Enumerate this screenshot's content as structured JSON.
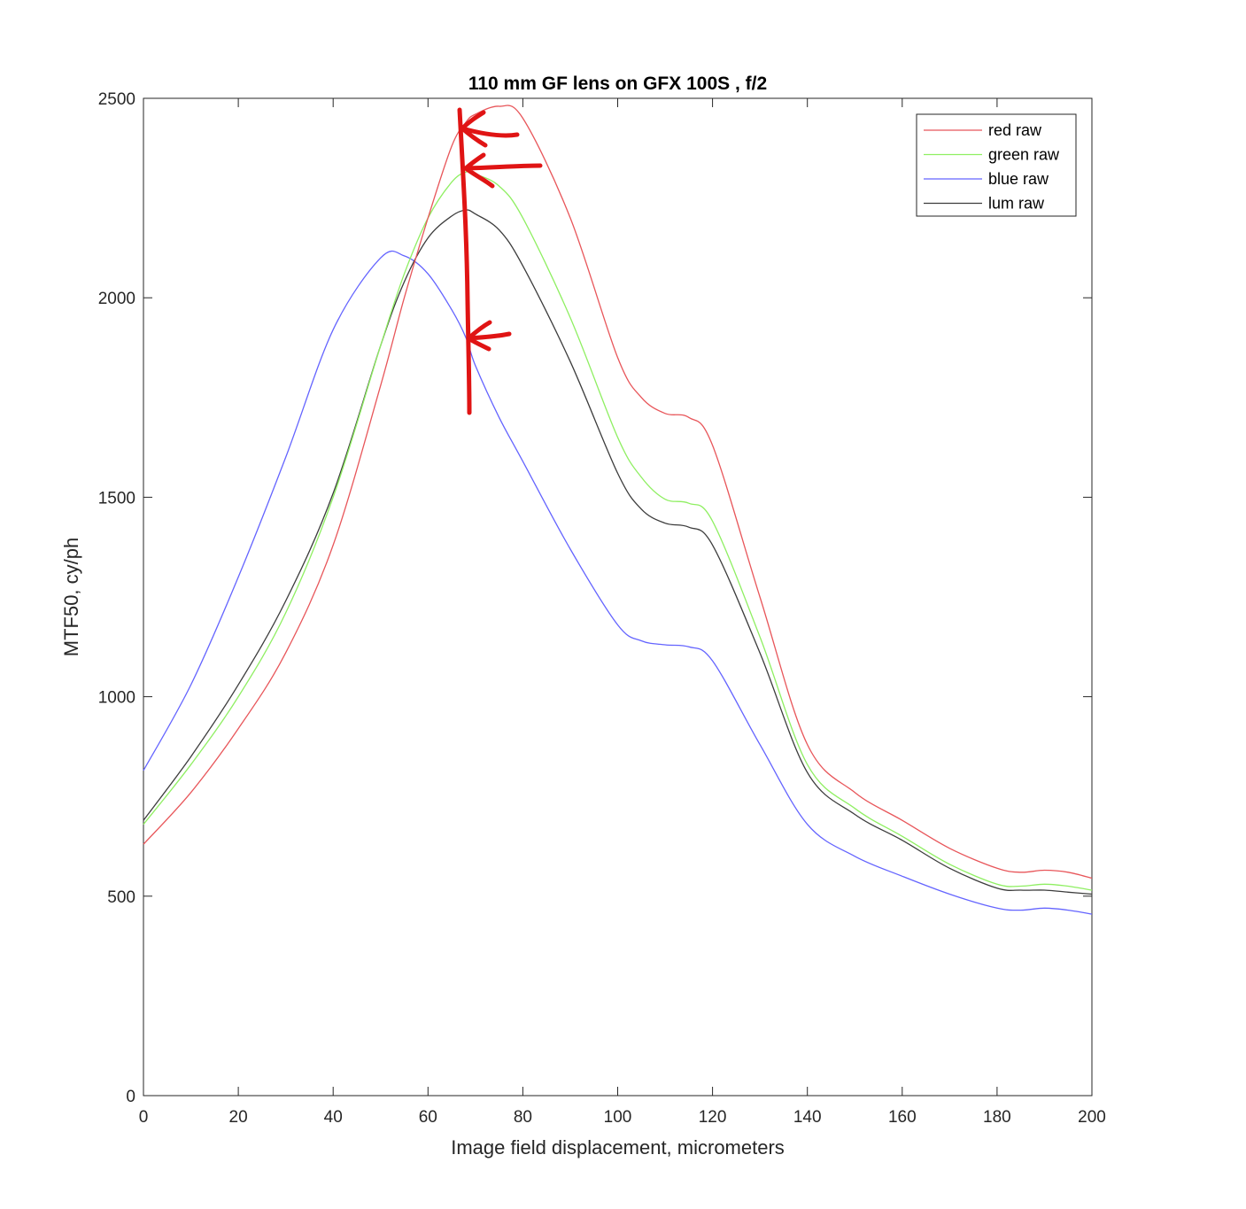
{
  "chart_data": {
    "type": "line",
    "title": "110 mm GF lens on GFX 100S , f/2",
    "xlabel": "Image field displacement, micrometers",
    "ylabel": "MTF50, cy/ph",
    "xlim": [
      0,
      200
    ],
    "ylim": [
      0,
      2500
    ],
    "xticks": [
      0,
      20,
      40,
      60,
      80,
      100,
      120,
      140,
      160,
      180,
      200
    ],
    "yticks": [
      0,
      500,
      1000,
      1500,
      2000,
      2500
    ],
    "xtick_labels": [
      "0",
      "20",
      "40",
      "60",
      "80",
      "100",
      "120",
      "140",
      "160",
      "180",
      "200"
    ],
    "ytick_labels": [
      "0",
      "500",
      "1000",
      "1500",
      "2000",
      "2500"
    ],
    "grid": false,
    "legend_position": "top-right",
    "x": [
      0,
      10,
      20,
      30,
      40,
      50,
      55,
      60,
      65,
      68,
      70,
      75,
      80,
      90,
      100,
      105,
      110,
      115,
      120,
      130,
      140,
      150,
      160,
      170,
      180,
      185,
      190,
      195,
      200
    ],
    "series": [
      {
        "name": "red raw",
        "color": "#e8565a",
        "values": [
          630,
          760,
          920,
          1110,
          1380,
          1780,
          2000,
          2200,
          2380,
          2440,
          2460,
          2480,
          2450,
          2200,
          1850,
          1750,
          1710,
          1700,
          1630,
          1250,
          880,
          760,
          690,
          620,
          570,
          560,
          565,
          560,
          545
        ]
      },
      {
        "name": "green raw",
        "color": "#8fef62",
        "values": [
          680,
          830,
          1000,
          1210,
          1500,
          1880,
          2060,
          2200,
          2290,
          2315,
          2310,
          2280,
          2200,
          1950,
          1650,
          1550,
          1495,
          1485,
          1440,
          1150,
          830,
          720,
          650,
          580,
          530,
          525,
          530,
          525,
          515
        ]
      },
      {
        "name": "blue raw",
        "color": "#6464ff",
        "values": [
          815,
          1030,
          1300,
          1600,
          1920,
          2100,
          2105,
          2060,
          1970,
          1900,
          1830,
          1700,
          1590,
          1370,
          1180,
          1140,
          1130,
          1125,
          1090,
          880,
          680,
          600,
          550,
          505,
          470,
          465,
          470,
          465,
          455
        ]
      },
      {
        "name": "lum raw",
        "color": "#3c3c3c",
        "values": [
          690,
          850,
          1030,
          1240,
          1510,
          1880,
          2040,
          2150,
          2205,
          2220,
          2210,
          2170,
          2080,
          1840,
          1560,
          1470,
          1435,
          1425,
          1380,
          1110,
          810,
          705,
          640,
          570,
          520,
          515,
          515,
          510,
          505
        ]
      }
    ]
  }
}
